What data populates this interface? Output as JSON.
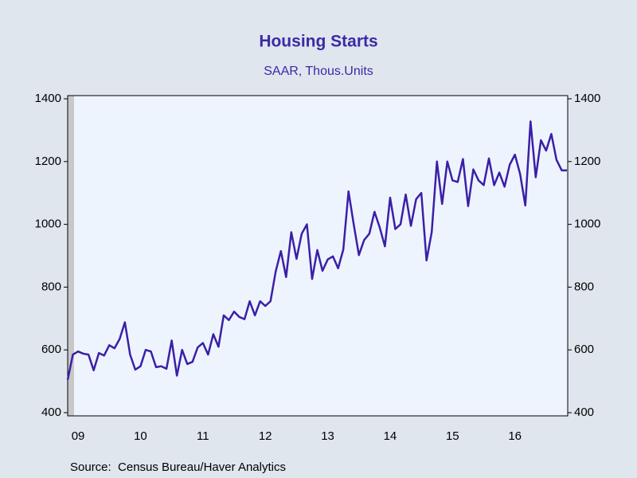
{
  "chart_data": {
    "type": "line",
    "title": "Housing Starts",
    "subtitle": "SAAR, Thous.Units",
    "source": "Source:  Census Bureau/Haver Analytics",
    "categories": [
      null,
      null,
      "09",
      null,
      null,
      null,
      null,
      null,
      null,
      null,
      null,
      null,
      null,
      null,
      "10",
      null,
      null,
      null,
      null,
      null,
      null,
      null,
      null,
      null,
      null,
      null,
      "11",
      null,
      null,
      null,
      null,
      null,
      null,
      null,
      null,
      null,
      null,
      null,
      "12",
      null,
      null,
      null,
      null,
      null,
      null,
      null,
      null,
      null,
      null,
      null,
      "13",
      null,
      null,
      null,
      null,
      null,
      null,
      null,
      null,
      null,
      null,
      null,
      "14",
      null,
      null,
      null,
      null,
      null,
      null,
      null,
      null,
      null,
      null,
      null,
      "15",
      null,
      null,
      null,
      null,
      null,
      null,
      null,
      null,
      null,
      null,
      null,
      "16",
      null,
      null,
      null,
      null,
      null,
      null,
      null,
      null,
      null,
      null
    ],
    "color": "#3b1fa8",
    "values": [
      505,
      585,
      595,
      588,
      585,
      535,
      590,
      582,
      615,
      605,
      635,
      688,
      585,
      537,
      548,
      600,
      595,
      545,
      548,
      540,
      630,
      518,
      600,
      555,
      562,
      608,
      622,
      585,
      650,
      610,
      710,
      695,
      722,
      705,
      698,
      755,
      710,
      755,
      740,
      755,
      850,
      915,
      832,
      975,
      890,
      970,
      1000,
      826,
      918,
      852,
      888,
      898,
      860,
      920,
      1105,
      1000,
      902,
      950,
      970,
      1040,
      990,
      930,
      1085,
      985,
      1000,
      1095,
      995,
      1080,
      1100,
      885,
      975,
      1200,
      1065,
      1200,
      1140,
      1135,
      1208,
      1058,
      1175,
      1140,
      1125,
      1210,
      1125,
      1165,
      1120,
      1190,
      1222,
      1160,
      1060,
      1328,
      1150,
      1268,
      1235,
      1288,
      1205,
      1172,
      1172
    ],
    "ylim": [
      400,
      1400
    ],
    "yticks": [
      400,
      600,
      800,
      1000,
      1200,
      1400
    ],
    "y2lim": [
      400,
      1400
    ],
    "y2ticks": [
      400,
      600,
      800,
      1000,
      1200,
      1400
    ]
  }
}
